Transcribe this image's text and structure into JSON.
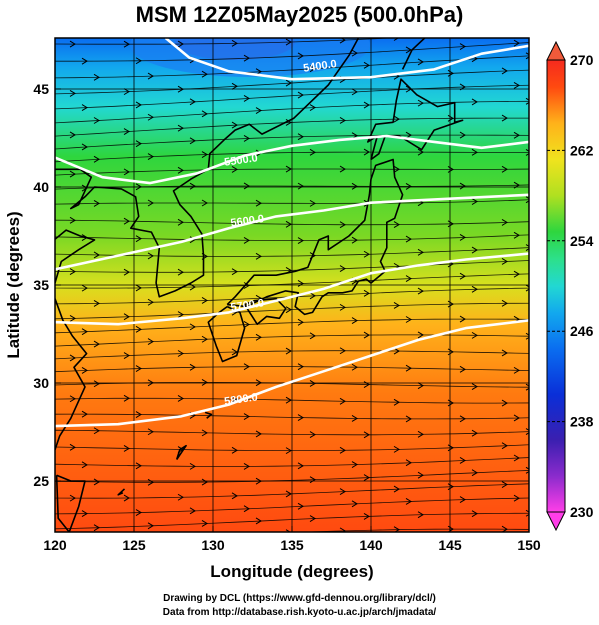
{
  "title": "MSM 12Z05May2025 (500.0hPa)",
  "map": {
    "xlabel": "Longitude (degrees)",
    "ylabel": "Latitude  (degrees)",
    "xlim": [
      120,
      150
    ],
    "ylim": [
      22.4,
      47.6
    ],
    "x_ticks": [
      {
        "value": 120,
        "label": "120"
      },
      {
        "value": 125,
        "label": "125"
      },
      {
        "value": 130,
        "label": "130"
      },
      {
        "value": 135,
        "label": "135"
      },
      {
        "value": 140,
        "label": "140"
      },
      {
        "value": 145,
        "label": "145"
      },
      {
        "value": 150,
        "label": "150"
      }
    ],
    "y_ticks": [
      {
        "value": 25,
        "label": "25"
      },
      {
        "value": 30,
        "label": "30"
      },
      {
        "value": 35,
        "label": "35"
      },
      {
        "value": 40,
        "label": "40"
      },
      {
        "value": 45,
        "label": "45"
      }
    ],
    "grid": true,
    "contours": [
      {
        "label": "5400.0",
        "label_at": [
          136.8,
          46.0
        ],
        "points": [
          [
            127.0,
            47.6
          ],
          [
            128.5,
            46.6
          ],
          [
            131.0,
            45.9
          ],
          [
            135.0,
            45.5
          ],
          [
            140.0,
            45.6
          ],
          [
            144.0,
            46.0
          ],
          [
            147.0,
            46.8
          ],
          [
            150.0,
            47.2
          ]
        ]
      },
      {
        "label": "5500.0",
        "label_at": [
          131.8,
          41.2
        ],
        "points": [
          [
            120.0,
            41.5
          ],
          [
            123.0,
            40.5
          ],
          [
            126.0,
            40.2
          ],
          [
            129.0,
            40.7
          ],
          [
            132.0,
            41.6
          ],
          [
            135.0,
            42.1
          ],
          [
            138.0,
            42.4
          ],
          [
            141.0,
            42.6
          ],
          [
            144.0,
            42.3
          ],
          [
            147.0,
            42.0
          ],
          [
            150.0,
            42.3
          ]
        ]
      },
      {
        "label": "5600.0",
        "label_at": [
          132.2,
          38.1
        ],
        "points": [
          [
            120.0,
            35.8
          ],
          [
            124.0,
            36.5
          ],
          [
            128.0,
            37.2
          ],
          [
            131.0,
            37.9
          ],
          [
            134.0,
            38.5
          ],
          [
            137.0,
            38.8
          ],
          [
            140.0,
            39.2
          ],
          [
            145.0,
            39.4
          ],
          [
            150.0,
            39.6
          ]
        ]
      },
      {
        "label": "5700.0",
        "label_at": [
          132.2,
          33.8
        ],
        "points": [
          [
            120.0,
            33.1
          ],
          [
            124.0,
            33.0
          ],
          [
            128.0,
            33.3
          ],
          [
            131.0,
            33.6
          ],
          [
            134.0,
            34.2
          ],
          [
            137.0,
            34.8
          ],
          [
            140.0,
            35.6
          ],
          [
            143.0,
            36.0
          ],
          [
            146.0,
            36.3
          ],
          [
            150.0,
            36.6
          ]
        ]
      },
      {
        "label": "5800.0",
        "label_at": [
          131.8,
          29.0
        ],
        "points": [
          [
            120.0,
            27.8
          ],
          [
            124.0,
            27.9
          ],
          [
            128.0,
            28.3
          ],
          [
            131.0,
            28.9
          ],
          [
            134.0,
            29.8
          ],
          [
            137.0,
            30.6
          ],
          [
            140.0,
            31.4
          ],
          [
            143.0,
            32.2
          ],
          [
            146.0,
            32.8
          ],
          [
            150.0,
            33.2
          ]
        ]
      }
    ],
    "coastline_color": "#000000",
    "vector_color": "#000000"
  },
  "colorbar": {
    "range": [
      230,
      270
    ],
    "labels": [
      {
        "value": 230,
        "label": "230"
      },
      {
        "value": 238,
        "label": "238"
      },
      {
        "value": 246,
        "label": "246"
      },
      {
        "value": 254,
        "label": "254"
      },
      {
        "value": 262,
        "label": "262"
      },
      {
        "value": 270,
        "label": "270"
      }
    ],
    "colors": [
      "#ff3ee8",
      "#cc33dd",
      "#8a2bcc",
      "#3a1fb0",
      "#0a2fd8",
      "#0a6df0",
      "#12a8ee",
      "#22d8d2",
      "#2de08a",
      "#2ed63e",
      "#6ad82a",
      "#b0e020",
      "#f0e31e",
      "#ffb21a",
      "#ff7a10",
      "#ff4a10",
      "#f52a1e"
    ]
  },
  "credits": {
    "line1": "Drawing by DCL (https://www.gfd-dennou.org/library/dcl/)",
    "line2": "Data from http://database.rish.kyoto-u.ac.jp/arch/jmadata/"
  }
}
